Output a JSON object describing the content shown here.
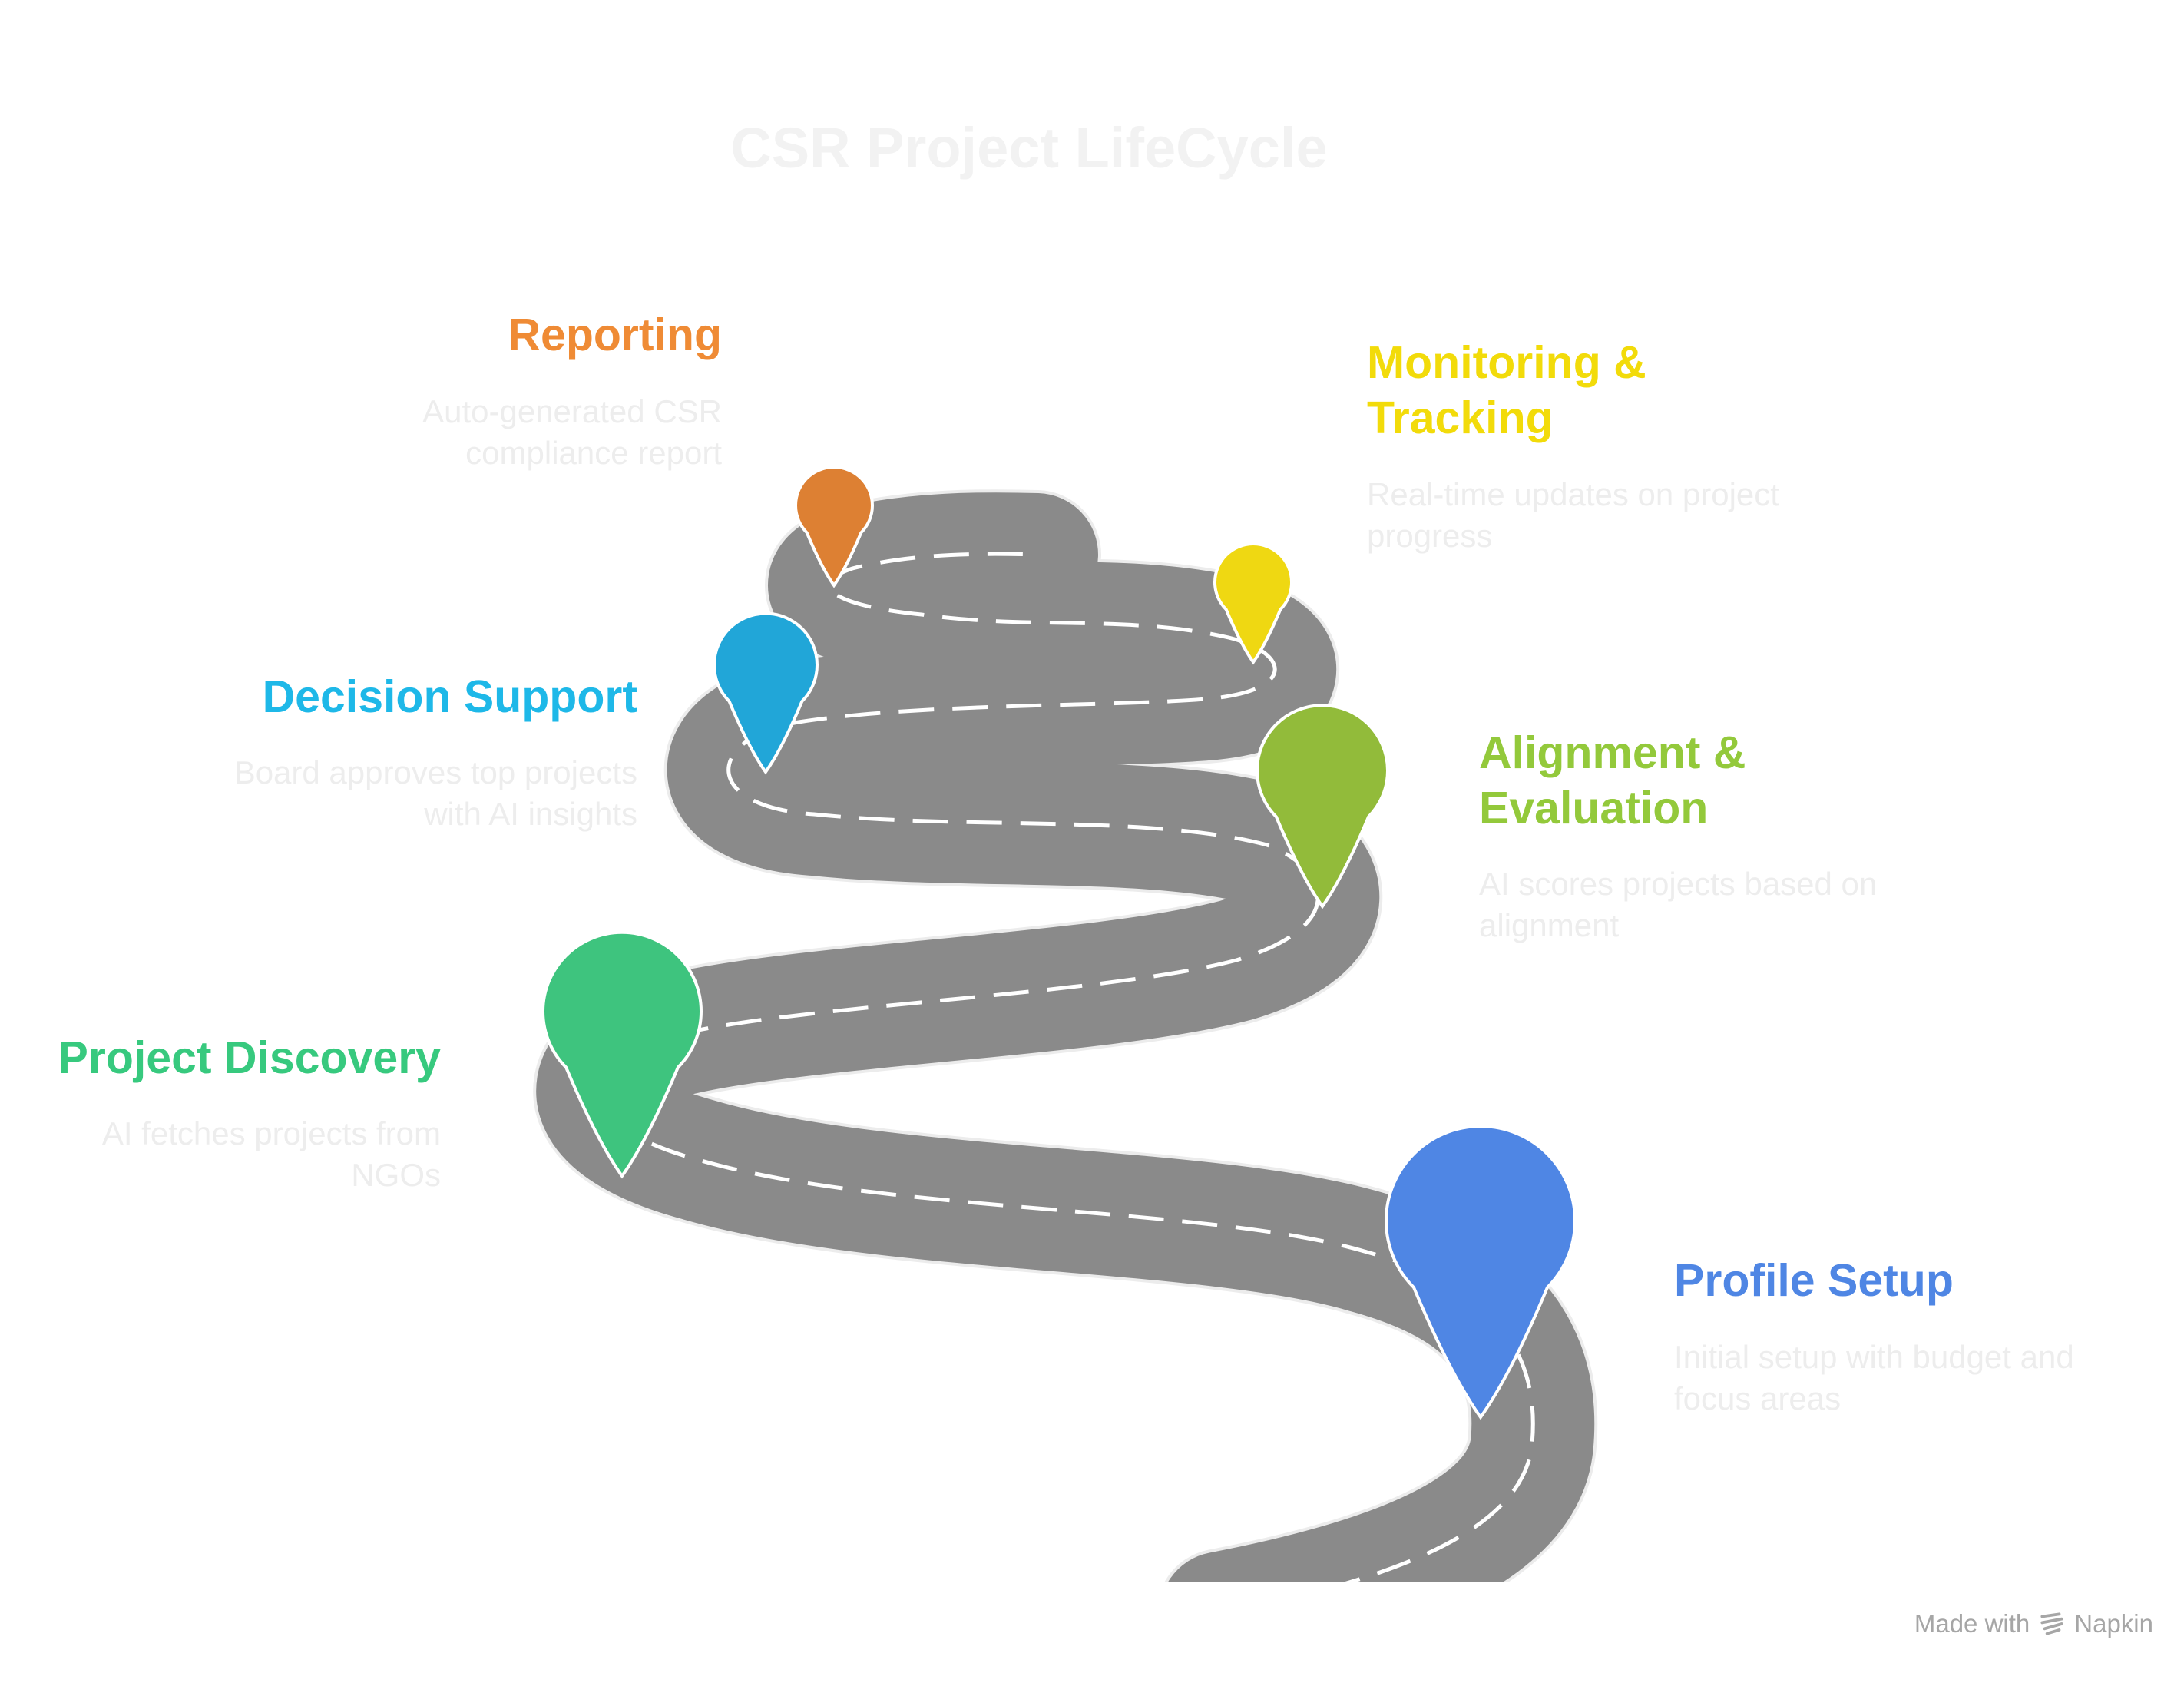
{
  "title": "CSR Project LifeCycle",
  "steps": [
    {
      "id": "reporting",
      "title": "Reporting",
      "description": "Auto-generated CSR compliance report",
      "color": "#dd8033",
      "title_color": "#ef8b35"
    },
    {
      "id": "monitoring",
      "title": "Monitoring & Tracking",
      "description": "Real-time updates on project progress",
      "color": "#efd812",
      "title_color": "#f2db0a"
    },
    {
      "id": "decision",
      "title": "Decision Support",
      "description": "Board approves top projects with AI insights",
      "color": "#21a6d8",
      "title_color": "#1eb8e8"
    },
    {
      "id": "alignment",
      "title": "Alignment & Evaluation",
      "description": "AI scores projects based on alignment",
      "color": "#92bb3a",
      "title_color": "#93c93b"
    },
    {
      "id": "discovery",
      "title": "Project Discovery",
      "description": "AI fetches projects from NGOs",
      "color": "#3ec47e",
      "title_color": "#37c97e"
    },
    {
      "id": "profile",
      "title": "Profile Setup",
      "description": "Initial setup with budget and focus areas",
      "color": "#4f86e4",
      "title_color": "#4f86e4"
    }
  ],
  "footer": {
    "made_with": "Made with",
    "brand": "Napkin"
  },
  "road_color": "#8a8a8a",
  "road_edge_color": "#ececec",
  "dash_color": "#ffffff"
}
